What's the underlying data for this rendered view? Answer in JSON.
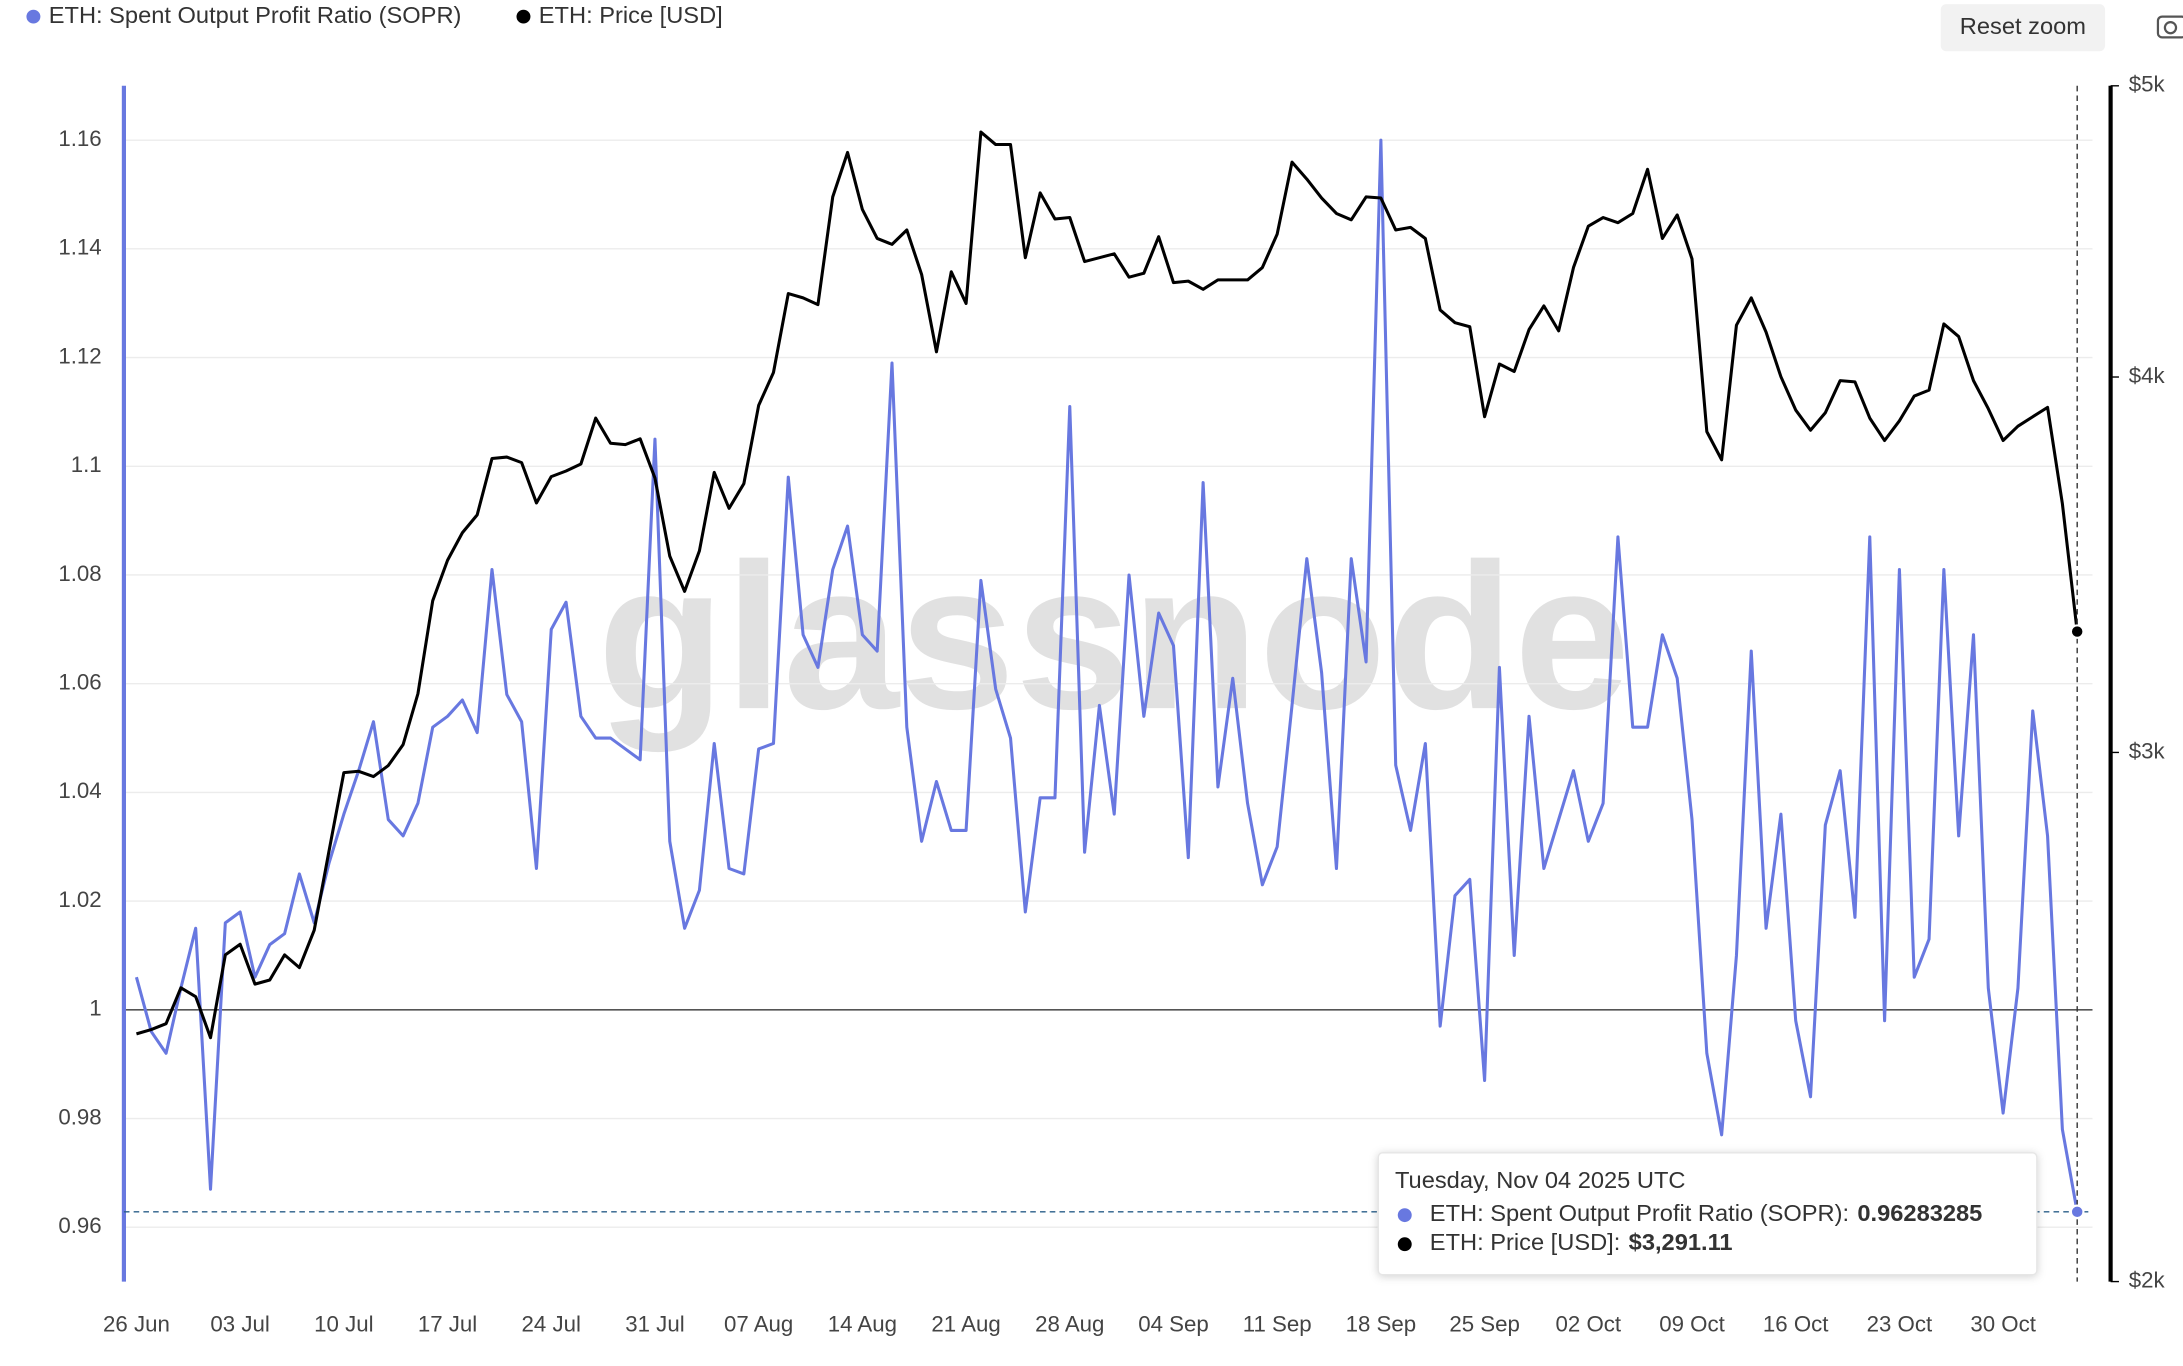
{
  "chart_data": {
    "type": "line",
    "watermark": "glassnode",
    "reset_button": "Reset zoom",
    "categories": [
      "26 Jun",
      null,
      null,
      null,
      null,
      null,
      null,
      "03 Jul",
      null,
      null,
      null,
      null,
      null,
      null,
      "10 Jul",
      null,
      null,
      null,
      null,
      null,
      null,
      "17 Jul",
      null,
      null,
      null,
      null,
      null,
      null,
      "24 Jul",
      null,
      null,
      null,
      null,
      null,
      null,
      "31 Jul",
      null,
      null,
      null,
      null,
      null,
      null,
      "07 Aug",
      null,
      null,
      null,
      null,
      null,
      null,
      "14 Aug",
      null,
      null,
      null,
      null,
      null,
      null,
      "21 Aug",
      null,
      null,
      null,
      null,
      null,
      null,
      "28 Aug",
      null,
      null,
      null,
      null,
      null,
      null,
      "04 Sep",
      null,
      null,
      null,
      null,
      null,
      null,
      "11 Sep",
      null,
      null,
      null,
      null,
      null,
      null,
      "18 Sep",
      null,
      null,
      null,
      null,
      null,
      null,
      "25 Sep",
      null,
      null,
      null,
      null,
      null,
      null,
      "02 Oct",
      null,
      null,
      null,
      null,
      null,
      null,
      "09 Oct",
      null,
      null,
      null,
      null,
      null,
      null,
      "16 Oct",
      null,
      null,
      null,
      null,
      null,
      null,
      "23 Oct",
      null,
      null,
      null,
      null,
      null,
      null,
      "30 Oct",
      null,
      null,
      null,
      null,
      null
    ],
    "series": [
      {
        "name": "ETH: Spent Output Profit Ratio (SOPR)",
        "color": "#6878e0",
        "axis": "y",
        "values": [
          1.006,
          0.996,
          0.992,
          1.004,
          1.015,
          0.967,
          1.016,
          1.018,
          1.006,
          1.012,
          1.014,
          1.025,
          1.016,
          1.027,
          1.036,
          1.044,
          1.053,
          1.035,
          1.032,
          1.038,
          1.052,
          1.054,
          1.057,
          1.051,
          1.081,
          1.058,
          1.053,
          1.026,
          1.07,
          1.075,
          1.054,
          1.05,
          1.05,
          1.048,
          1.046,
          1.105,
          1.031,
          1.015,
          1.022,
          1.049,
          1.026,
          1.025,
          1.048,
          1.049,
          1.098,
          1.069,
          1.063,
          1.081,
          1.089,
          1.069,
          1.066,
          1.119,
          1.052,
          1.031,
          1.042,
          1.033,
          1.033,
          1.079,
          1.059,
          1.05,
          1.018,
          1.039,
          1.039,
          1.111,
          1.029,
          1.056,
          1.036,
          1.08,
          1.054,
          1.073,
          1.067,
          1.028,
          1.097,
          1.041,
          1.061,
          1.038,
          1.023,
          1.03,
          1.056,
          1.083,
          1.062,
          1.026,
          1.083,
          1.064,
          1.16,
          1.045,
          1.033,
          1.049,
          0.997,
          1.021,
          1.024,
          0.987,
          1.063,
          1.01,
          1.054,
          1.026,
          1.035,
          1.044,
          1.031,
          1.038,
          1.087,
          1.052,
          1.052,
          1.069,
          1.061,
          1.035,
          0.992,
          0.977,
          1.01,
          1.066,
          1.015,
          1.036,
          0.998,
          0.984,
          1.034,
          1.044,
          1.017,
          1.087,
          0.998,
          1.081,
          1.006,
          1.013,
          1.081,
          1.032,
          1.069,
          1.004,
          0.981,
          1.004,
          1.055,
          1.032,
          0.978,
          0.96283285
        ]
      },
      {
        "name": "ETH: Price [USD]",
        "color": "#000000",
        "axis": "y2",
        "values": [
          2418,
          2426,
          2437,
          2505,
          2488,
          2411,
          2569,
          2590,
          2512,
          2520,
          2569,
          2544,
          2618,
          2782,
          2954,
          2957,
          2945,
          2970,
          3018,
          3138,
          3370,
          3476,
          3550,
          3599,
          3758,
          3762,
          3746,
          3632,
          3706,
          3722,
          3742,
          3876,
          3802,
          3798,
          3815,
          3702,
          3487,
          3394,
          3501,
          3718,
          3617,
          3686,
          3914,
          4014,
          4264,
          4250,
          4228,
          4592,
          4751,
          4548,
          4448,
          4428,
          4477,
          4327,
          4078,
          4336,
          4232,
          4826,
          4780,
          4780,
          4383,
          4606,
          4515,
          4520,
          4370,
          4383,
          4396,
          4318,
          4331,
          4454,
          4300,
          4305,
          4278,
          4309,
          4309,
          4309,
          4350,
          4463,
          4716,
          4655,
          4588,
          4534,
          4512,
          4592,
          4588,
          4477,
          4486,
          4448,
          4211,
          4170,
          4157,
          3880,
          4040,
          4017,
          4148,
          4224,
          4144,
          4350,
          4490,
          4520,
          4502,
          4534,
          4690,
          4448,
          4529,
          4379,
          3836,
          3754,
          4162,
          4250,
          4140,
          4001,
          3900,
          3840,
          3892,
          3989,
          3985,
          3876,
          3810,
          3868,
          3942,
          3960,
          4166,
          4126,
          3989,
          3904,
          3810,
          3852,
          3880,
          3908,
          3630,
          3291.11
        ]
      }
    ],
    "ylim": [
      0.95,
      1.17
    ],
    "yticks": [
      0.96,
      0.98,
      1,
      1.02,
      1.04,
      1.06,
      1.08,
      1.1,
      1.12,
      1.14,
      1.16
    ],
    "y2lim": [
      2000,
      5000
    ],
    "y2log": true,
    "y2ticks": [
      {
        "value": 2000,
        "label": "$2k"
      },
      {
        "value": 3000,
        "label": "$3k"
      },
      {
        "value": 4000,
        "label": "$4k"
      },
      {
        "value": 5000,
        "label": "$5k"
      }
    ],
    "reference_line": 1,
    "grid": true,
    "legend": "top-left",
    "tooltip": {
      "title": "Tuesday, Nov 04 2025 UTC",
      "rows": [
        {
          "label": "ETH: Spent Output Profit Ratio (SOPR):",
          "value": "0.96283285"
        },
        {
          "label": "ETH: Price [USD]:",
          "value": "$3,291.11"
        }
      ]
    }
  }
}
